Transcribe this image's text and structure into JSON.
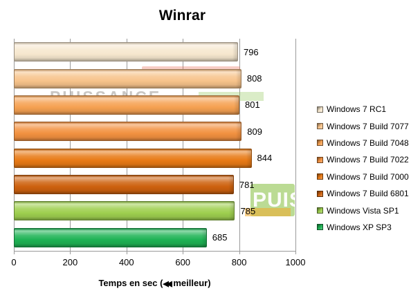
{
  "chart_data": {
    "type": "bar",
    "orientation": "horizontal",
    "title": "Winrar",
    "xlabel": "Temps en sec (◀◀ meilleur)",
    "xlim": [
      0,
      1000
    ],
    "xticks": [
      0,
      200,
      400,
      600,
      800,
      1000
    ],
    "grid": true,
    "legend_position": "right",
    "series": [
      {
        "name": "Windows 7 RC1",
        "value": 796,
        "color": "#f6e7ce"
      },
      {
        "name": "Windows 7 Build 7077",
        "value": 808,
        "color": "#f7c38b"
      },
      {
        "name": "Windows 7 Build 7048",
        "value": 801,
        "color": "#f5a152"
      },
      {
        "name": "Windows 7 Build 7022",
        "value": 809,
        "color": "#f29140"
      },
      {
        "name": "Windows 7 Build 7000",
        "value": 844,
        "color": "#e87a16"
      },
      {
        "name": "Windows 7 Build 6801",
        "value": 781,
        "color": "#cd610e"
      },
      {
        "name": "Windows Vista SP1",
        "value": 785,
        "color": "#9ecf4f"
      },
      {
        "name": "Windows XP SP3",
        "value": 685,
        "color": "#1eb254"
      }
    ]
  },
  "axis": {
    "label_prefix": "Temps en sec (",
    "rewind_glyph": "◀◀",
    "label_suffix": "meilleur)"
  },
  "watermark": {
    "text_mid": "PUISSANCE",
    "text_block": "PUIS"
  },
  "colors": {
    "gridline": "#9a9a9a",
    "text": "#000000"
  }
}
